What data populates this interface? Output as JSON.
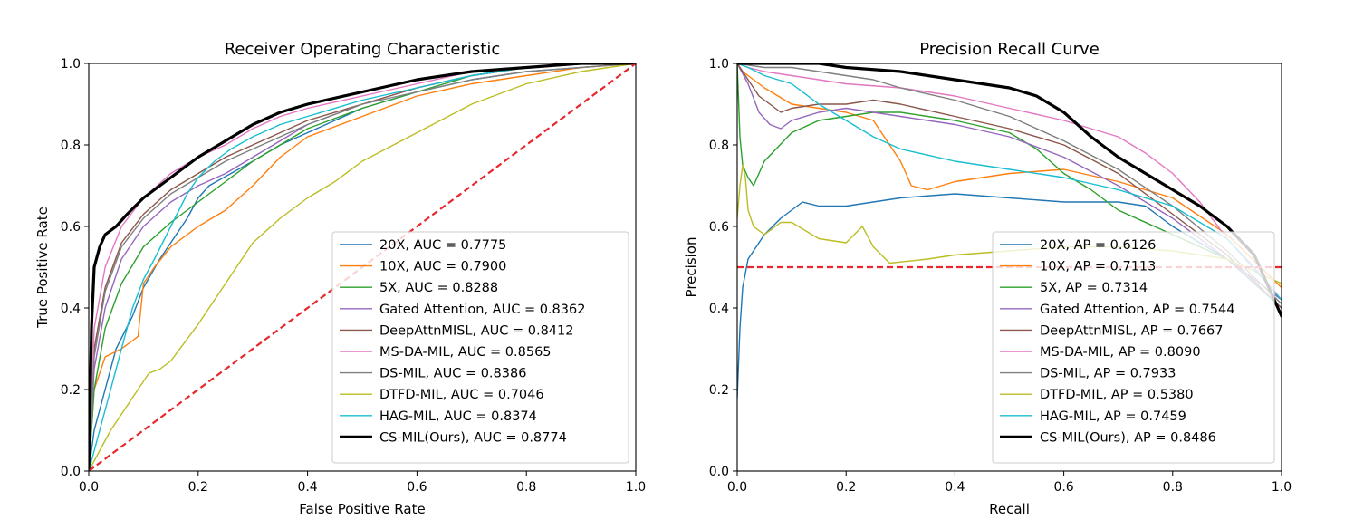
{
  "chart_data": [
    {
      "type": "line",
      "title": "Receiver Operating Characteristic",
      "xlabel": "False Positive Rate",
      "ylabel": "True Positive Rate",
      "xlim": [
        0,
        1
      ],
      "ylim": [
        0,
        1
      ],
      "xticks": [
        "0.0",
        "0.2",
        "0.4",
        "0.6",
        "0.8",
        "1.0"
      ],
      "yticks": [
        "0.0",
        "0.2",
        "0.4",
        "0.6",
        "0.8",
        "1.0"
      ],
      "legend_position": "lower-right",
      "reference_line": {
        "x": [
          0,
          1
        ],
        "y": [
          0,
          1
        ],
        "color": "#e8262b",
        "style": "dashed"
      },
      "series": [
        {
          "name": "20X, AUC = 0.7775",
          "color": "#1f77b4",
          "width": 1.4,
          "x": [
            0,
            0.01,
            0.03,
            0.05,
            0.08,
            0.1,
            0.13,
            0.16,
            0.18,
            0.2,
            0.22,
            0.26,
            0.3,
            0.35,
            0.4,
            0.45,
            0.5,
            0.6,
            0.7,
            0.8,
            0.9,
            1.0
          ],
          "y": [
            0,
            0.1,
            0.2,
            0.3,
            0.38,
            0.45,
            0.52,
            0.58,
            0.62,
            0.67,
            0.7,
            0.73,
            0.76,
            0.8,
            0.83,
            0.86,
            0.89,
            0.93,
            0.96,
            0.98,
            0.99,
            1.0
          ]
        },
        {
          "name": "10X, AUC = 0.7900",
          "color": "#ff7f0e",
          "width": 1.4,
          "x": [
            0,
            0.01,
            0.03,
            0.06,
            0.08,
            0.09,
            0.1,
            0.12,
            0.15,
            0.2,
            0.25,
            0.3,
            0.35,
            0.4,
            0.5,
            0.6,
            0.7,
            0.8,
            0.9,
            1.0
          ],
          "y": [
            0,
            0.2,
            0.28,
            0.3,
            0.32,
            0.33,
            0.46,
            0.5,
            0.55,
            0.6,
            0.64,
            0.7,
            0.77,
            0.82,
            0.87,
            0.92,
            0.95,
            0.97,
            0.99,
            1.0
          ]
        },
        {
          "name": "5X, AUC = 0.8288",
          "color": "#2ca02c",
          "width": 1.4,
          "x": [
            0,
            0.01,
            0.03,
            0.06,
            0.1,
            0.15,
            0.2,
            0.25,
            0.3,
            0.35,
            0.4,
            0.5,
            0.6,
            0.7,
            0.8,
            0.9,
            1.0
          ],
          "y": [
            0,
            0.2,
            0.35,
            0.46,
            0.55,
            0.61,
            0.66,
            0.71,
            0.76,
            0.8,
            0.84,
            0.89,
            0.93,
            0.97,
            0.99,
            1.0,
            1.0
          ]
        },
        {
          "name": "Gated Attention, AUC = 0.8362",
          "color": "#9467bd",
          "width": 1.4,
          "x": [
            0,
            0.01,
            0.03,
            0.06,
            0.1,
            0.15,
            0.2,
            0.25,
            0.3,
            0.35,
            0.4,
            0.5,
            0.6,
            0.7,
            0.8,
            0.9,
            1.0
          ],
          "y": [
            0,
            0.25,
            0.4,
            0.52,
            0.6,
            0.66,
            0.7,
            0.73,
            0.77,
            0.81,
            0.85,
            0.9,
            0.94,
            0.97,
            0.99,
            1.0,
            1.0
          ]
        },
        {
          "name": "DeepAttnMISL, AUC = 0.8412",
          "color": "#8c564b",
          "width": 1.4,
          "x": [
            0,
            0.01,
            0.03,
            0.06,
            0.1,
            0.15,
            0.2,
            0.25,
            0.3,
            0.35,
            0.4,
            0.5,
            0.6,
            0.7,
            0.8,
            0.9,
            1.0
          ],
          "y": [
            0,
            0.3,
            0.45,
            0.56,
            0.63,
            0.69,
            0.73,
            0.77,
            0.8,
            0.83,
            0.86,
            0.9,
            0.94,
            0.97,
            0.99,
            1.0,
            1.0
          ]
        },
        {
          "name": "MS-DA-MIL, AUC = 0.8565",
          "color": "#e377c2",
          "width": 1.4,
          "x": [
            0,
            0.01,
            0.03,
            0.06,
            0.1,
            0.15,
            0.2,
            0.25,
            0.3,
            0.35,
            0.4,
            0.5,
            0.6,
            0.7,
            0.8,
            0.9,
            1.0
          ],
          "y": [
            0,
            0.35,
            0.5,
            0.6,
            0.67,
            0.73,
            0.77,
            0.8,
            0.84,
            0.87,
            0.89,
            0.92,
            0.95,
            0.98,
            0.99,
            1.0,
            1.0
          ]
        },
        {
          "name": "DS-MIL, AUC = 0.8386",
          "color": "#7f7f7f",
          "width": 1.4,
          "x": [
            0,
            0.01,
            0.03,
            0.06,
            0.1,
            0.15,
            0.2,
            0.25,
            0.3,
            0.35,
            0.4,
            0.5,
            0.6,
            0.7,
            0.8,
            0.9,
            1.0
          ],
          "y": [
            0,
            0.28,
            0.44,
            0.55,
            0.62,
            0.68,
            0.72,
            0.76,
            0.79,
            0.82,
            0.85,
            0.9,
            0.93,
            0.96,
            0.98,
            0.99,
            1.0
          ]
        },
        {
          "name": "DTFD-MIL, AUC = 0.7046",
          "color": "#bcbd22",
          "width": 1.4,
          "x": [
            0,
            0.02,
            0.04,
            0.07,
            0.1,
            0.11,
            0.13,
            0.15,
            0.2,
            0.25,
            0.3,
            0.35,
            0.4,
            0.45,
            0.5,
            0.6,
            0.7,
            0.8,
            0.9,
            1.0
          ],
          "y": [
            0,
            0.05,
            0.1,
            0.16,
            0.22,
            0.24,
            0.25,
            0.27,
            0.36,
            0.46,
            0.56,
            0.62,
            0.67,
            0.71,
            0.76,
            0.83,
            0.9,
            0.95,
            0.98,
            1.0
          ]
        },
        {
          "name": "HAG-MIL, AUC = 0.8374",
          "color": "#17becf",
          "width": 1.4,
          "x": [
            0,
            0.02,
            0.04,
            0.06,
            0.08,
            0.1,
            0.12,
            0.15,
            0.18,
            0.2,
            0.23,
            0.26,
            0.3,
            0.35,
            0.4,
            0.5,
            0.6,
            0.7,
            0.8,
            0.9,
            1.0
          ],
          "y": [
            0,
            0.1,
            0.2,
            0.3,
            0.4,
            0.47,
            0.52,
            0.6,
            0.68,
            0.72,
            0.76,
            0.79,
            0.82,
            0.85,
            0.87,
            0.91,
            0.94,
            0.97,
            0.99,
            1.0,
            1.0
          ]
        },
        {
          "name": "CS-MIL(Ours), AUC = 0.8774",
          "color": "#000000",
          "width": 3.2,
          "x": [
            0,
            0.005,
            0.01,
            0.02,
            0.03,
            0.05,
            0.07,
            0.1,
            0.15,
            0.2,
            0.25,
            0.3,
            0.35,
            0.4,
            0.5,
            0.6,
            0.7,
            0.8,
            0.9,
            1.0
          ],
          "y": [
            0,
            0.35,
            0.5,
            0.55,
            0.58,
            0.6,
            0.63,
            0.67,
            0.72,
            0.77,
            0.81,
            0.85,
            0.88,
            0.9,
            0.93,
            0.96,
            0.98,
            0.99,
            1.0,
            1.0
          ]
        }
      ]
    },
    {
      "type": "line",
      "title": "Precision Recall Curve",
      "xlabel": "Recall",
      "ylabel": "Precision",
      "xlim": [
        0,
        1
      ],
      "ylim": [
        0,
        1
      ],
      "xticks": [
        "0.0",
        "0.2",
        "0.4",
        "0.6",
        "0.8",
        "1.0"
      ],
      "yticks": [
        "0.0",
        "0.2",
        "0.4",
        "0.6",
        "0.8",
        "1.0"
      ],
      "legend_position": "lower-right",
      "reference_line": {
        "x": [
          0,
          1
        ],
        "y": [
          0.5,
          0.5
        ],
        "color": "#e8262b",
        "style": "dashed"
      },
      "series": [
        {
          "name": "20X, AP = 0.6126",
          "color": "#1f77b4",
          "width": 1.4,
          "x": [
            0,
            0.005,
            0.01,
            0.02,
            0.03,
            0.05,
            0.08,
            0.1,
            0.12,
            0.15,
            0.2,
            0.3,
            0.4,
            0.5,
            0.6,
            0.7,
            0.75,
            0.8,
            0.9,
            1.0
          ],
          "y": [
            0.18,
            0.35,
            0.45,
            0.52,
            0.54,
            0.58,
            0.62,
            0.64,
            0.66,
            0.65,
            0.65,
            0.67,
            0.68,
            0.67,
            0.66,
            0.66,
            0.65,
            0.6,
            0.52,
            0.4
          ]
        },
        {
          "name": "10X, AP = 0.7113",
          "color": "#ff7f0e",
          "width": 1.4,
          "x": [
            0,
            0.01,
            0.03,
            0.05,
            0.1,
            0.15,
            0.2,
            0.25,
            0.3,
            0.32,
            0.35,
            0.4,
            0.5,
            0.6,
            0.7,
            0.8,
            0.9,
            1.0
          ],
          "y": [
            1.0,
            0.98,
            0.96,
            0.94,
            0.9,
            0.89,
            0.88,
            0.86,
            0.76,
            0.7,
            0.69,
            0.71,
            0.73,
            0.74,
            0.71,
            0.67,
            0.58,
            0.45
          ]
        },
        {
          "name": "5X, AP = 0.7314",
          "color": "#2ca02c",
          "width": 1.4,
          "x": [
            0,
            0.005,
            0.01,
            0.02,
            0.03,
            0.05,
            0.1,
            0.15,
            0.2,
            0.25,
            0.3,
            0.4,
            0.5,
            0.55,
            0.6,
            0.65,
            0.7,
            0.8,
            0.9,
            1.0
          ],
          "y": [
            1.0,
            0.82,
            0.75,
            0.72,
            0.7,
            0.76,
            0.83,
            0.86,
            0.87,
            0.88,
            0.88,
            0.86,
            0.83,
            0.79,
            0.73,
            0.69,
            0.64,
            0.58,
            0.52,
            0.42
          ]
        },
        {
          "name": "Gated Attention, AP = 0.7544",
          "color": "#9467bd",
          "width": 1.4,
          "x": [
            0,
            0.02,
            0.04,
            0.06,
            0.08,
            0.1,
            0.15,
            0.2,
            0.25,
            0.3,
            0.4,
            0.5,
            0.6,
            0.7,
            0.8,
            0.9,
            1.0
          ],
          "y": [
            1.0,
            0.95,
            0.88,
            0.85,
            0.84,
            0.86,
            0.88,
            0.89,
            0.88,
            0.87,
            0.85,
            0.82,
            0.77,
            0.7,
            0.62,
            0.52,
            0.42
          ]
        },
        {
          "name": "DeepAttnMISL, AP = 0.7667",
          "color": "#8c564b",
          "width": 1.4,
          "x": [
            0,
            0.02,
            0.04,
            0.06,
            0.08,
            0.1,
            0.15,
            0.2,
            0.25,
            0.3,
            0.4,
            0.5,
            0.6,
            0.7,
            0.8,
            0.9,
            1.0
          ],
          "y": [
            1.0,
            0.96,
            0.92,
            0.9,
            0.88,
            0.89,
            0.9,
            0.9,
            0.91,
            0.9,
            0.87,
            0.84,
            0.8,
            0.73,
            0.63,
            0.53,
            0.4
          ]
        },
        {
          "name": "MS-DA-MIL, AP = 0.8090",
          "color": "#e377c2",
          "width": 1.4,
          "x": [
            0,
            0.02,
            0.05,
            0.1,
            0.15,
            0.2,
            0.3,
            0.4,
            0.5,
            0.6,
            0.7,
            0.75,
            0.8,
            0.85,
            0.9,
            0.95,
            1.0
          ],
          "y": [
            1.0,
            0.99,
            0.98,
            0.97,
            0.96,
            0.95,
            0.94,
            0.92,
            0.89,
            0.86,
            0.82,
            0.78,
            0.73,
            0.66,
            0.57,
            0.5,
            0.42
          ]
        },
        {
          "name": "DS-MIL, AP = 0.7933",
          "color": "#7f7f7f",
          "width": 1.4,
          "x": [
            0,
            0.05,
            0.1,
            0.15,
            0.2,
            0.25,
            0.3,
            0.4,
            0.5,
            0.6,
            0.7,
            0.8,
            0.9,
            1.0
          ],
          "y": [
            1.0,
            0.99,
            0.99,
            0.98,
            0.97,
            0.96,
            0.94,
            0.91,
            0.87,
            0.81,
            0.74,
            0.65,
            0.54,
            0.41
          ]
        },
        {
          "name": "DTFD-MIL, AP = 0.5380",
          "color": "#bcbd22",
          "width": 1.4,
          "x": [
            0,
            0.005,
            0.01,
            0.015,
            0.02,
            0.03,
            0.05,
            0.08,
            0.1,
            0.15,
            0.2,
            0.23,
            0.25,
            0.28,
            0.35,
            0.4,
            0.5,
            0.6,
            0.7,
            0.8,
            0.9,
            1.0
          ],
          "y": [
            0.62,
            0.7,
            0.75,
            0.72,
            0.64,
            0.6,
            0.58,
            0.61,
            0.61,
            0.57,
            0.56,
            0.6,
            0.55,
            0.51,
            0.52,
            0.53,
            0.54,
            0.55,
            0.55,
            0.54,
            0.52,
            0.46
          ]
        },
        {
          "name": "HAG-MIL, AP = 0.7459",
          "color": "#17becf",
          "width": 1.4,
          "x": [
            0,
            0.02,
            0.05,
            0.1,
            0.15,
            0.2,
            0.25,
            0.3,
            0.4,
            0.5,
            0.6,
            0.7,
            0.8,
            0.9,
            1.0
          ],
          "y": [
            1.0,
            0.99,
            0.97,
            0.95,
            0.9,
            0.86,
            0.82,
            0.79,
            0.76,
            0.74,
            0.72,
            0.69,
            0.65,
            0.57,
            0.42
          ]
        },
        {
          "name": "CS-MIL(Ours), AP = 0.8486",
          "color": "#000000",
          "width": 3.2,
          "x": [
            0,
            0.05,
            0.1,
            0.15,
            0.2,
            0.3,
            0.4,
            0.5,
            0.55,
            0.6,
            0.65,
            0.7,
            0.75,
            0.8,
            0.85,
            0.9,
            0.95,
            1.0
          ],
          "y": [
            1.0,
            1.0,
            1.0,
            1.0,
            0.99,
            0.98,
            0.96,
            0.94,
            0.92,
            0.88,
            0.82,
            0.77,
            0.73,
            0.69,
            0.65,
            0.6,
            0.53,
            0.38
          ]
        }
      ]
    }
  ]
}
